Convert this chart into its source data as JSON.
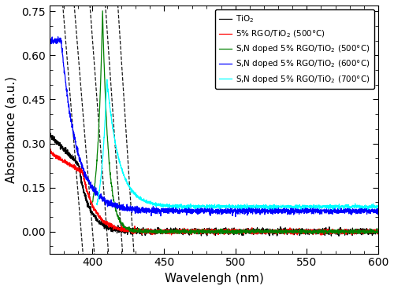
{
  "xlabel": "Wavelengh (nm)",
  "ylabel": "Absorbance (a.u.)",
  "xlim": [
    370,
    600
  ],
  "ylim": [
    -0.075,
    0.77
  ],
  "yticks": [
    0.0,
    0.15,
    0.3,
    0.45,
    0.6,
    0.75
  ],
  "xticks": [
    400,
    450,
    500,
    550,
    600
  ],
  "legend": [
    {
      "label": "TiO$_2$",
      "color": "black"
    },
    {
      "label": "5% RGO/TiO$_2$ (500°C)",
      "color": "red"
    },
    {
      "label": "S,N doped 5% RGO/TiO$_2$ (500°C)",
      "color": "green"
    },
    {
      "label": "S,N doped 5% RGO/TiO$_2$ (600°C)",
      "color": "blue"
    },
    {
      "label": "S,N doped 5% RGO/TiO$_2$ (700°C)",
      "color": "cyan"
    }
  ],
  "figsize": [
    5.0,
    3.69
  ],
  "dpi": 100,
  "dashed_lines": [
    {
      "x0": 392,
      "slope": -0.06,
      "x_min": 376,
      "x_max": 408
    },
    {
      "x0": 400,
      "slope": -0.06,
      "x_min": 383,
      "x_max": 416
    },
    {
      "x0": 410,
      "slope": -0.065,
      "x_min": 393,
      "x_max": 424
    },
    {
      "x0": 420,
      "slope": -0.07,
      "x_min": 403,
      "x_max": 432
    },
    {
      "x0": 428,
      "slope": -0.075,
      "x_min": 410,
      "x_max": 440
    }
  ]
}
